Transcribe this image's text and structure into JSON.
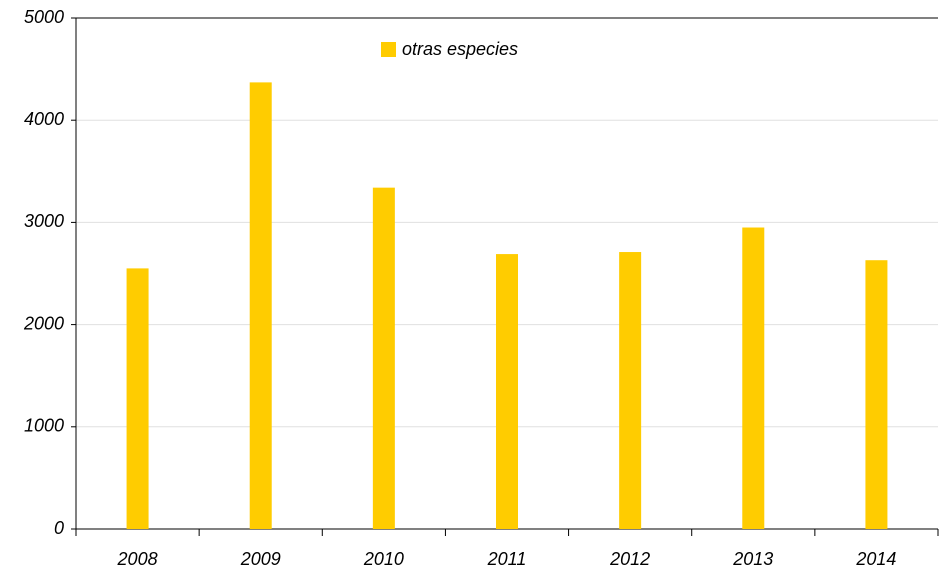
{
  "chart_data": {
    "type": "bar",
    "categories": [
      "2008",
      "2009",
      "2010",
      "2011",
      "2012",
      "2013",
      "2014"
    ],
    "series": [
      {
        "name": "otras especies",
        "color": "#ffcc00",
        "values": [
          2550,
          4370,
          3340,
          2690,
          2710,
          2950,
          2630
        ]
      }
    ],
    "ylim": [
      0,
      5000
    ],
    "yticks": [
      0,
      1000,
      2000,
      3000,
      4000,
      5000
    ],
    "grid": true,
    "legend": "top"
  }
}
